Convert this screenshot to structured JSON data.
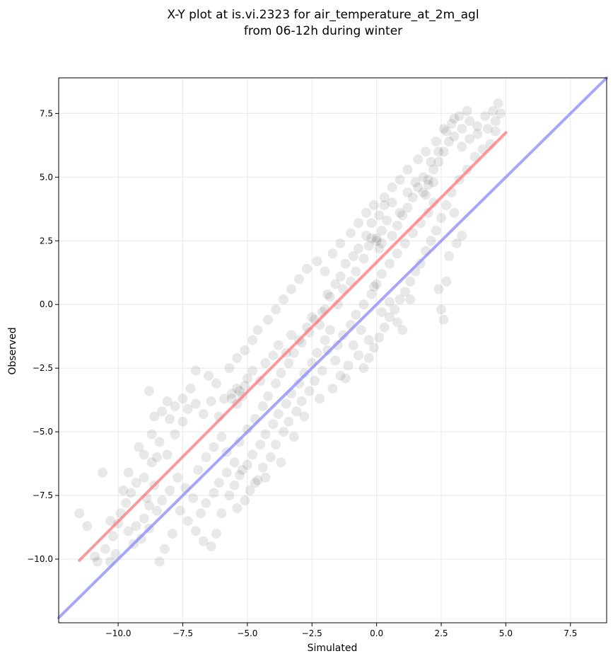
{
  "chart_data": {
    "type": "scatter",
    "title": "X-Y plot at is.vi.2323 for air_temperature_at_2m_agl",
    "subtitle": "from 06-12h during winter",
    "xlabel": "Simulated",
    "ylabel": "Observed",
    "xlim": [
      -12.3,
      8.9
    ],
    "ylim": [
      -12.5,
      8.9
    ],
    "xticks": [
      -10.0,
      -7.5,
      -5.0,
      -2.5,
      0.0,
      2.5,
      5.0,
      7.5
    ],
    "xtick_labels": [
      "−10.0",
      "−7.5",
      "−5.0",
      "−2.5",
      "0.0",
      "2.5",
      "5.0",
      "7.5"
    ],
    "yticks": [
      -10.0,
      -7.5,
      -5.0,
      -2.5,
      0.0,
      2.5,
      5.0,
      7.5
    ],
    "ytick_labels": [
      "−10.0",
      "−7.5",
      "−5.0",
      "−2.5",
      "0.0",
      "2.5",
      "5.0",
      "7.5"
    ],
    "grid": true,
    "points": [
      [
        -11.5,
        -8.2
      ],
      [
        -11.2,
        -8.7
      ],
      [
        -10.9,
        -9.9
      ],
      [
        -10.8,
        -10.1
      ],
      [
        -10.5,
        -9.6
      ],
      [
        -10.3,
        -10.1
      ],
      [
        -10.1,
        -9.8
      ],
      [
        -10.2,
        -9.1
      ],
      [
        -10.0,
        -8.6
      ],
      [
        -9.9,
        -8.2
      ],
      [
        -9.7,
        -7.8
      ],
      [
        -9.5,
        -7.4
      ],
      [
        -9.3,
        -7.0
      ],
      [
        -9.0,
        -6.8
      ],
      [
        -8.9,
        -7.6
      ],
      [
        -8.6,
        -7.1
      ],
      [
        -9.2,
        -5.6
      ],
      [
        -8.7,
        -6.2
      ],
      [
        -8.4,
        -5.4
      ],
      [
        -8.1,
        -5.9
      ],
      [
        -8.6,
        -4.4
      ],
      [
        -8.3,
        -4.2
      ],
      [
        -8.0,
        -4.5
      ],
      [
        -7.8,
        -5.1
      ],
      [
        -7.5,
        -4.6
      ],
      [
        -7.3,
        -4.1
      ],
      [
        -7.0,
        -3.9
      ],
      [
        -6.7,
        -4.3
      ],
      [
        -6.4,
        -3.8
      ],
      [
        -6.1,
        -4.4
      ],
      [
        -5.9,
        -3.7
      ],
      [
        -5.6,
        -3.5
      ],
      [
        -5.4,
        -3.3
      ],
      [
        -5.2,
        -3.6
      ],
      [
        -5.0,
        -2.9
      ],
      [
        -4.8,
        -2.6
      ],
      [
        -4.5,
        -3.0
      ],
      [
        -4.3,
        -2.3
      ],
      [
        -4.0,
        -2.0
      ],
      [
        -3.8,
        -1.6
      ],
      [
        -3.5,
        -1.9
      ],
      [
        -3.3,
        -1.2
      ],
      [
        -3.0,
        -1.4
      ],
      [
        -2.7,
        -0.9
      ],
      [
        -2.5,
        -0.5
      ],
      [
        -2.2,
        -0.8
      ],
      [
        -2.0,
        -0.2
      ],
      [
        -1.8,
        0.3
      ],
      [
        -1.5,
        0.0
      ],
      [
        -1.3,
        0.6
      ],
      [
        -1.0,
        0.9
      ],
      [
        -0.8,
        1.3
      ],
      [
        -0.5,
        1.8
      ],
      [
        -0.3,
        2.3
      ],
      [
        0.0,
        2.5
      ],
      [
        0.2,
        2.9
      ],
      [
        0.4,
        3.3
      ],
      [
        0.6,
        2.7
      ],
      [
        0.8,
        3.1
      ],
      [
        1.0,
        3.5
      ],
      [
        1.2,
        3.8
      ],
      [
        1.4,
        4.2
      ],
      [
        1.6,
        4.6
      ],
      [
        1.8,
        4.4
      ],
      [
        2.0,
        4.9
      ],
      [
        2.2,
        5.3
      ],
      [
        2.4,
        5.6
      ],
      [
        2.6,
        6.0
      ],
      [
        2.8,
        6.4
      ],
      [
        3.0,
        6.6
      ],
      [
        3.3,
        6.9
      ],
      [
        3.6,
        7.2
      ],
      [
        3.9,
        7.0
      ],
      [
        4.2,
        7.4
      ],
      [
        4.5,
        7.6
      ],
      [
        4.7,
        7.9
      ],
      [
        4.8,
        7.5
      ],
      [
        4.6,
        6.8
      ],
      [
        4.4,
        6.3
      ],
      [
        4.1,
        6.1
      ],
      [
        3.8,
        5.8
      ],
      [
        3.5,
        5.3
      ],
      [
        3.2,
        4.9
      ],
      [
        2.9,
        4.4
      ],
      [
        2.7,
        3.9
      ],
      [
        2.5,
        3.4
      ],
      [
        2.3,
        2.9
      ],
      [
        2.1,
        2.5
      ],
      [
        1.9,
        2.1
      ],
      [
        1.7,
        1.6
      ],
      [
        1.5,
        1.3
      ],
      [
        1.3,
        0.9
      ],
      [
        1.1,
        0.5
      ],
      [
        0.9,
        0.2
      ],
      [
        0.7,
        -0.2
      ],
      [
        0.5,
        -0.5
      ],
      [
        0.3,
        -0.9
      ],
      [
        0.1,
        -1.3
      ],
      [
        -0.1,
        -1.7
      ],
      [
        -0.3,
        -2.1
      ],
      [
        -0.5,
        -2.5
      ],
      [
        -0.7,
        -2.0
      ],
      [
        -0.9,
        -1.6
      ],
      [
        -1.1,
        -2.4
      ],
      [
        -1.4,
        -2.8
      ],
      [
        -1.6,
        -2.2
      ],
      [
        -1.9,
        -1.8
      ],
      [
        -2.1,
        -2.6
      ],
      [
        -2.4,
        -3.0
      ],
      [
        -2.6,
        -3.4
      ],
      [
        -2.9,
        -3.8
      ],
      [
        -3.1,
        -4.2
      ],
      [
        -3.4,
        -4.6
      ],
      [
        -3.6,
        -5.0
      ],
      [
        -3.9,
        -5.5
      ],
      [
        -4.1,
        -6.0
      ],
      [
        -4.4,
        -6.4
      ],
      [
        -4.6,
        -6.9
      ],
      [
        -4.9,
        -7.3
      ],
      [
        -5.1,
        -7.7
      ],
      [
        -5.4,
        -8.0
      ],
      [
        -5.7,
        -7.5
      ],
      [
        -6.0,
        -8.2
      ],
      [
        -6.2,
        -9.0
      ],
      [
        -6.4,
        -9.5
      ],
      [
        -6.7,
        -9.3
      ],
      [
        -7.0,
        -8.9
      ],
      [
        -7.3,
        -8.5
      ],
      [
        -7.6,
        -8.1
      ],
      [
        -7.9,
        -9.0
      ],
      [
        -8.2,
        -9.6
      ],
      [
        -8.4,
        -10.1
      ],
      [
        -8.8,
        -8.8
      ],
      [
        -9.1,
        -9.2
      ],
      [
        -9.4,
        -9.4
      ],
      [
        -9.6,
        -8.9
      ],
      [
        -6.9,
        -6.5
      ],
      [
        -6.6,
        -6.0
      ],
      [
        -6.3,
        -5.6
      ],
      [
        -6.0,
        -5.2
      ],
      [
        -5.8,
        -5.8
      ],
      [
        -5.5,
        -6.2
      ],
      [
        -5.3,
        -5.4
      ],
      [
        -5.0,
        -4.9
      ],
      [
        -4.7,
        -4.5
      ],
      [
        -4.4,
        -4.0
      ],
      [
        -4.2,
        -3.6
      ],
      [
        -3.9,
        -3.1
      ],
      [
        -3.7,
        -2.7
      ],
      [
        -3.4,
        -2.3
      ],
      [
        -3.2,
        -1.9
      ],
      [
        -2.9,
        -1.5
      ],
      [
        -2.6,
        -1.1
      ],
      [
        -2.4,
        -0.6
      ],
      [
        -2.1,
        -0.3
      ],
      [
        -1.9,
        0.4
      ],
      [
        -1.6,
        0.8
      ],
      [
        -1.4,
        1.1
      ],
      [
        -1.2,
        1.6
      ],
      [
        -0.9,
        1.9
      ],
      [
        -0.7,
        2.2
      ],
      [
        -0.4,
        2.7
      ],
      [
        -0.2,
        3.2
      ],
      [
        0.1,
        3.5
      ],
      [
        0.3,
        3.9
      ],
      [
        0.6,
        4.0
      ],
      [
        0.9,
        3.6
      ],
      [
        1.2,
        4.4
      ],
      [
        1.5,
        4.8
      ],
      [
        1.8,
        5.0
      ],
      [
        2.1,
        5.6
      ],
      [
        2.4,
        6.0
      ],
      [
        2.7,
        6.8
      ],
      [
        3.0,
        7.3
      ],
      [
        3.3,
        6.2
      ],
      [
        3.6,
        6.5
      ],
      [
        3.9,
        6.7
      ],
      [
        4.3,
        6.9
      ],
      [
        4.6,
        7.2
      ],
      [
        2.2,
        4.0
      ],
      [
        2.0,
        3.6
      ],
      [
        1.7,
        3.2
      ],
      [
        1.4,
        2.8
      ],
      [
        1.1,
        2.4
      ],
      [
        0.8,
        2.0
      ],
      [
        0.5,
        1.6
      ],
      [
        0.2,
        1.2
      ],
      [
        0.0,
        0.8
      ],
      [
        -0.2,
        0.4
      ],
      [
        -0.5,
        0.0
      ],
      [
        -0.8,
        -0.4
      ],
      [
        -1.0,
        -0.8
      ],
      [
        -1.3,
        -1.2
      ],
      [
        -1.5,
        -1.6
      ],
      [
        -1.8,
        -1.0
      ],
      [
        -2.0,
        -1.4
      ],
      [
        -2.3,
        -1.9
      ],
      [
        -2.5,
        -2.3
      ],
      [
        -2.8,
        -2.7
      ],
      [
        -3.0,
        -3.1
      ],
      [
        -3.3,
        -3.5
      ],
      [
        -3.5,
        -3.9
      ],
      [
        -3.8,
        -4.3
      ],
      [
        -4.0,
        -4.7
      ],
      [
        -4.3,
        -5.1
      ],
      [
        -4.5,
        -5.5
      ],
      [
        -4.8,
        -5.9
      ],
      [
        -5.0,
        -6.3
      ],
      [
        -5.3,
        -6.7
      ],
      [
        -5.5,
        -7.1
      ],
      [
        -5.8,
        -6.6
      ],
      [
        -6.1,
        -7.0
      ],
      [
        -6.3,
        -7.4
      ],
      [
        -6.6,
        -7.8
      ],
      [
        -6.8,
        -8.2
      ],
      [
        -7.1,
        -7.6
      ],
      [
        -7.4,
        -7.2
      ],
      [
        -7.7,
        -6.8
      ],
      [
        -8.0,
        -7.3
      ],
      [
        -8.3,
        -7.7
      ],
      [
        -8.5,
        -8.1
      ],
      [
        -8.8,
        -7.9
      ],
      [
        -9.0,
        -8.4
      ],
      [
        -9.3,
        -8.7
      ],
      [
        -7.2,
        -3.3
      ],
      [
        -7.5,
        -3.7
      ],
      [
        -7.8,
        -4.0
      ],
      [
        -8.1,
        -3.8
      ],
      [
        -8.8,
        -3.4
      ],
      [
        -7.0,
        -2.6
      ],
      [
        -6.5,
        -2.8
      ],
      [
        -6.2,
        -3.1
      ],
      [
        -5.7,
        -2.5
      ],
      [
        -5.4,
        -2.1
      ],
      [
        -5.1,
        -1.8
      ],
      [
        -4.8,
        -1.4
      ],
      [
        -4.6,
        -1.0
      ],
      [
        -4.2,
        -0.6
      ],
      [
        -3.9,
        -0.2
      ],
      [
        -3.6,
        0.2
      ],
      [
        -3.3,
        0.6
      ],
      [
        -3.0,
        1.0
      ],
      [
        -2.7,
        1.4
      ],
      [
        -2.3,
        1.7
      ],
      [
        -2.0,
        1.3
      ],
      [
        -1.7,
        2.0
      ],
      [
        -1.4,
        2.4
      ],
      [
        -1.0,
        2.8
      ],
      [
        -0.7,
        3.2
      ],
      [
        -0.4,
        3.6
      ],
      [
        -0.1,
        3.9
      ],
      [
        0.3,
        4.2
      ],
      [
        0.6,
        4.6
      ],
      [
        0.9,
        4.9
      ],
      [
        1.2,
        5.3
      ],
      [
        1.6,
        5.7
      ],
      [
        1.9,
        6.0
      ],
      [
        2.3,
        6.4
      ],
      [
        2.6,
        6.9
      ],
      [
        2.9,
        7.1
      ],
      [
        3.2,
        7.4
      ],
      [
        3.5,
        7.6
      ],
      [
        -0.1,
        0.7
      ],
      [
        0.2,
        -0.3
      ],
      [
        0.5,
        0.1
      ],
      [
        0.8,
        -0.7
      ],
      [
        1.0,
        -1.0
      ],
      [
        1.3,
        0.2
      ],
      [
        2.5,
        -0.2
      ],
      [
        2.6,
        -0.6
      ],
      [
        2.7,
        0.9
      ],
      [
        2.4,
        0.6
      ],
      [
        2.8,
        1.9
      ],
      [
        3.1,
        2.4
      ],
      [
        3.3,
        2.7
      ],
      [
        3.0,
        3.6
      ],
      [
        -0.3,
        -1.4
      ],
      [
        -0.6,
        -1.0
      ],
      [
        -1.2,
        -2.9
      ],
      [
        -1.7,
        -3.3
      ],
      [
        -2.2,
        -3.7
      ],
      [
        -2.8,
        -4.4
      ],
      [
        -3.2,
        -5.2
      ],
      [
        -3.7,
        -6.2
      ],
      [
        -4.3,
        -6.8
      ],
      [
        -4.7,
        -7.0
      ],
      [
        -5.2,
        -6.5
      ],
      [
        -8.7,
        -5.1
      ],
      [
        -9.0,
        -5.9
      ],
      [
        -9.6,
        -6.6
      ],
      [
        -10.6,
        -6.6
      ],
      [
        -10.3,
        -8.5
      ],
      [
        -9.8,
        -7.3
      ],
      [
        -5.3,
        -3.4
      ],
      [
        -5.1,
        -3.2
      ],
      [
        -5.6,
        -3.7
      ],
      [
        -5.4,
        -3.9
      ],
      [
        0.0,
        2.6
      ],
      [
        0.2,
        2.4
      ],
      [
        -0.2,
        2.6
      ],
      [
        0.1,
        2.2
      ],
      [
        2.0,
        4.7
      ],
      [
        2.2,
        4.8
      ],
      [
        1.9,
        4.3
      ],
      [
        -8.5,
        -6.0
      ]
    ],
    "lines": [
      {
        "color": "#ff7777",
        "x": [
          -11.5,
          5.0
        ],
        "y": [
          -10.05,
          6.75
        ]
      },
      {
        "color": "#8888ff",
        "x": [
          -12.3,
          8.9
        ],
        "y": [
          -12.3,
          8.9
        ]
      }
    ],
    "colors": {
      "points": "#000000",
      "fit_line": "#f08080",
      "identity_line": "#8080f0",
      "grid": "#ececec"
    }
  }
}
